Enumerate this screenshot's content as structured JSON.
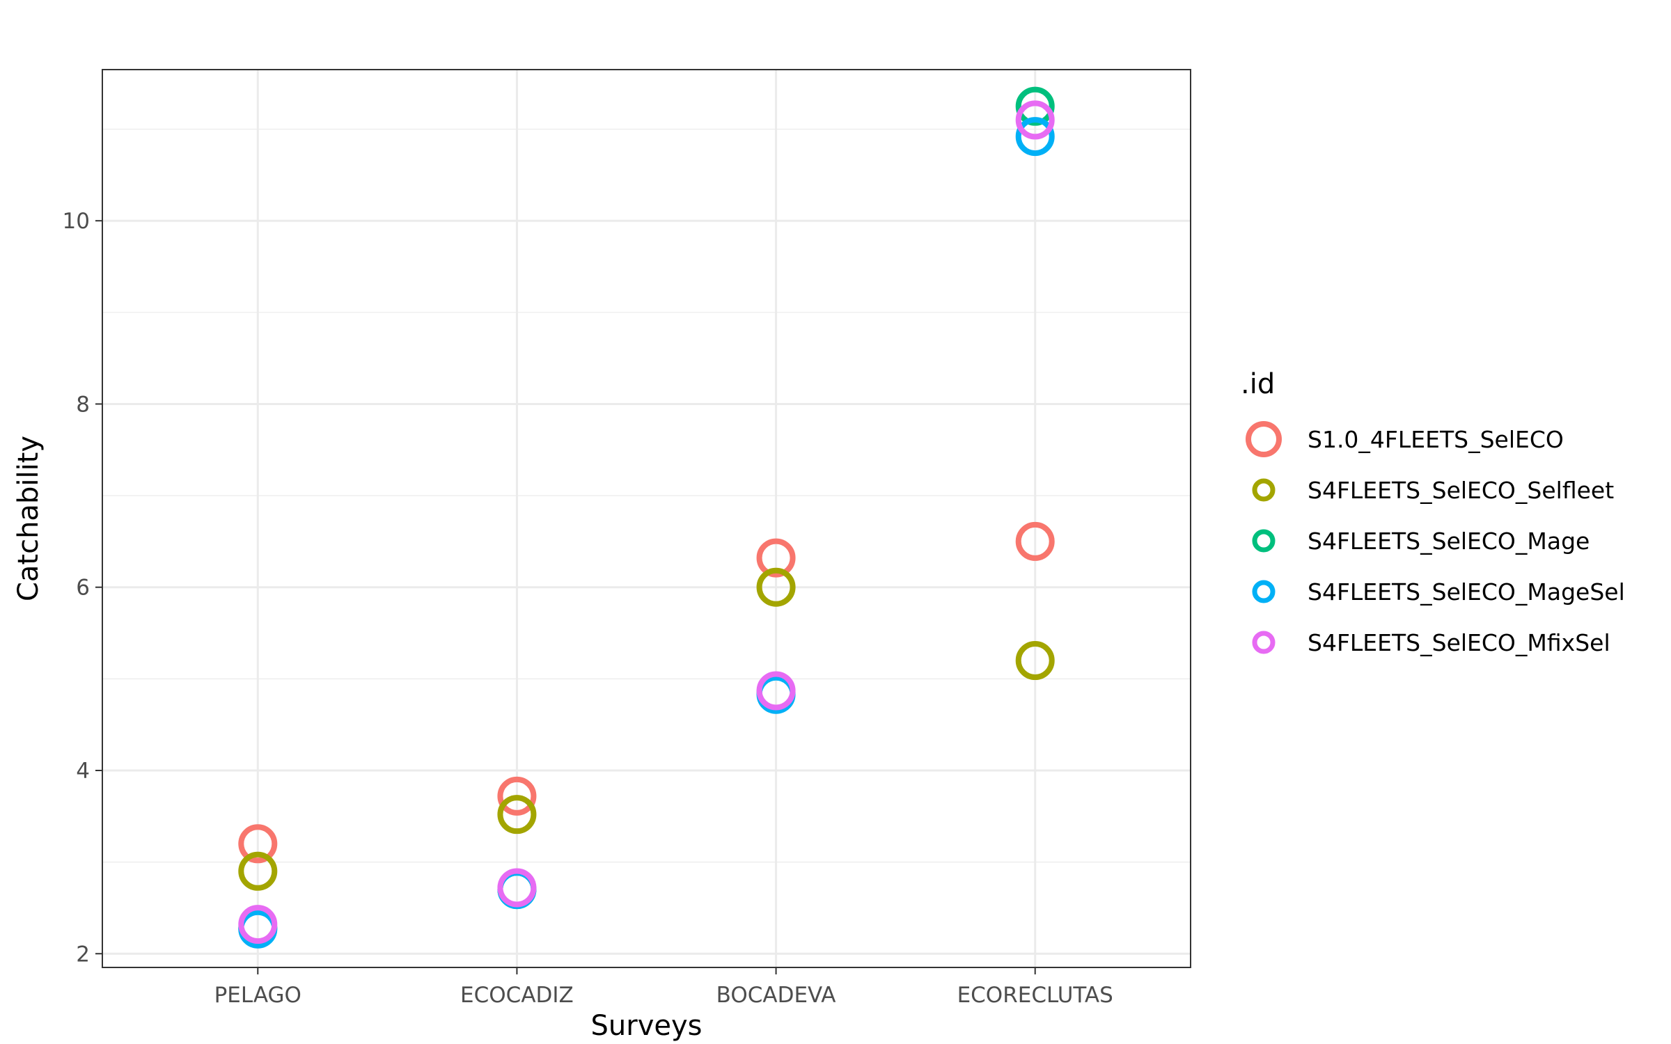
{
  "chart_data": {
    "type": "scatter",
    "xlabel": "Surveys",
    "ylabel": "Catchability",
    "categories": [
      "PELAGO",
      "ECOCADIZ",
      "BOCADEVA",
      "ECORECLUTAS"
    ],
    "ylim": [
      1.85,
      11.65
    ],
    "yticks": [
      2,
      4,
      6,
      8,
      10
    ],
    "grid": true,
    "legend": {
      "title": ".id",
      "position": "right"
    },
    "series": [
      {
        "name": "S1.0_4FLEETS_SelECO",
        "color": "#F8766D",
        "values": [
          3.2,
          3.72,
          6.32,
          6.5
        ]
      },
      {
        "name": "S4FLEETS_SelECO_Selfleet",
        "color": "#A3A500",
        "values": [
          2.9,
          3.52,
          6.0,
          5.2
        ]
      },
      {
        "name": "S4FLEETS_SelECO_Mage",
        "color": "#00BF7D",
        "values": [
          2.28,
          2.7,
          4.85,
          11.25
        ]
      },
      {
        "name": "S4FLEETS_SelECO_MageSel",
        "color": "#00B0F6",
        "values": [
          2.27,
          2.7,
          4.83,
          10.92
        ]
      },
      {
        "name": "S4FLEETS_SelECO_MfixSel",
        "color": "#E76BF3",
        "values": [
          2.32,
          2.72,
          4.87,
          11.1
        ]
      }
    ]
  }
}
